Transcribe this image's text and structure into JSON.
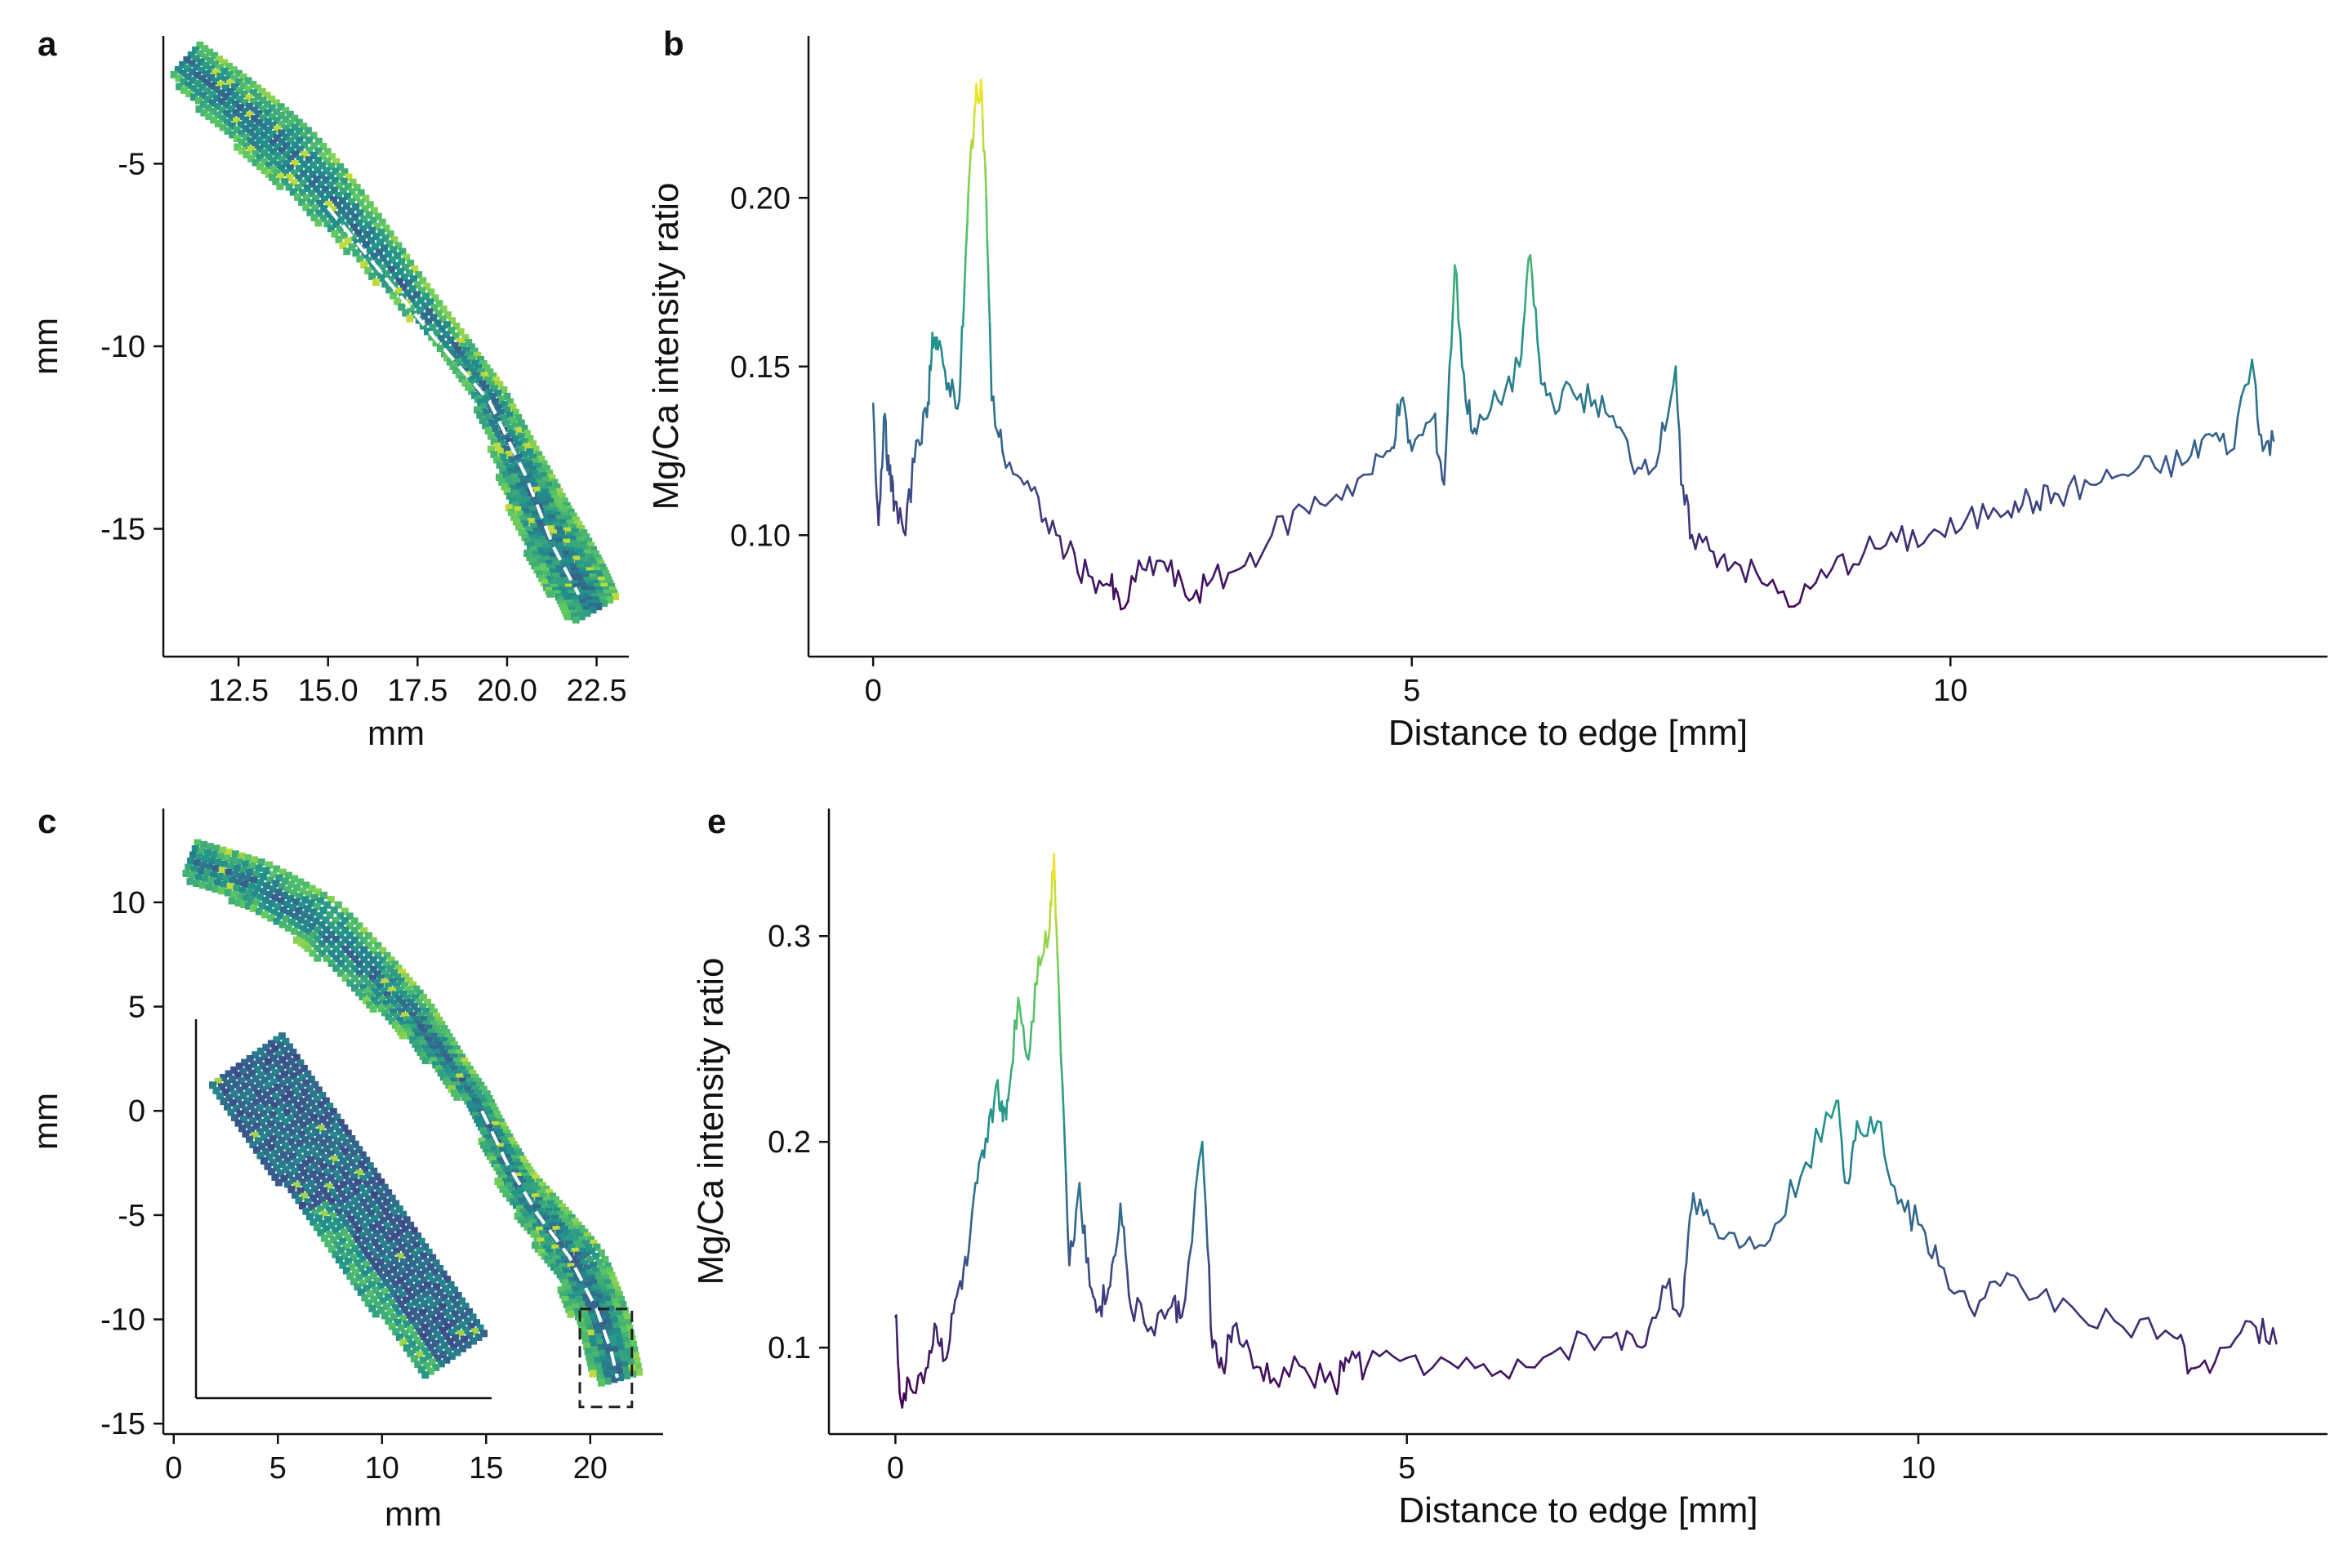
{
  "chart_data": [
    {
      "panel": "a",
      "type": "heatmap",
      "xlabel": "mm",
      "ylabel": "mm",
      "xlim": [
        10.4,
        23.4
      ],
      "ylim": [
        -18.5,
        -1.5
      ],
      "xticks": [
        12.5,
        15.0,
        17.5,
        20.0,
        22.5
      ],
      "xticklabels": [
        "12.5",
        "15.0",
        "17.5",
        "20.0",
        "22.5"
      ],
      "yticks": [
        -5,
        -10,
        -15
      ],
      "yticklabels": [
        "-5",
        "-10",
        "-15"
      ],
      "colormap": [
        "#440154",
        "#3b528b",
        "#21918c",
        "#5ec962",
        "#fde725"
      ],
      "band_centerline": [
        [
          11.0,
          -2.2
        ],
        [
          12.5,
          -3.5
        ],
        [
          14.0,
          -4.8
        ],
        [
          15.5,
          -6.4
        ],
        [
          17.0,
          -8.2
        ],
        [
          18.5,
          -10.0
        ],
        [
          19.5,
          -11.4
        ],
        [
          20.3,
          -13.2
        ],
        [
          21.0,
          -14.8
        ],
        [
          21.8,
          -16.2
        ],
        [
          22.4,
          -17.2
        ]
      ],
      "transect": [
        [
          15.0,
          -6.2
        ],
        [
          16.5,
          -8.0
        ],
        [
          18.0,
          -9.8
        ],
        [
          19.5,
          -11.5
        ],
        [
          20.5,
          -13.5
        ],
        [
          21.3,
          -15.5
        ],
        [
          22.0,
          -16.8
        ]
      ]
    },
    {
      "panel": "b",
      "type": "line",
      "xlabel": "Distance to edge [mm]",
      "ylabel": "Mg/Ca intensity ratio",
      "xlim": [
        -0.6,
        13.5
      ],
      "ylim": [
        0.064,
        0.248
      ],
      "xticks": [
        0,
        5,
        10
      ],
      "xticklabels": [
        "0",
        "5",
        "10"
      ],
      "yticks": [
        0.1,
        0.15,
        0.2
      ],
      "yticklabels": [
        "0.10",
        "0.15",
        "0.20"
      ],
      "colormap": [
        "#440154",
        "#3b528b",
        "#21918c",
        "#5ec962",
        "#fde725"
      ],
      "x": [
        0,
        0.05,
        0.1,
        0.15,
        0.2,
        0.3,
        0.4,
        0.5,
        0.55,
        0.6,
        0.7,
        0.8,
        0.85,
        0.9,
        0.95,
        1.0,
        1.05,
        1.1,
        1.2,
        1.4,
        1.6,
        1.8,
        2.0,
        2.2,
        2.3,
        2.5,
        2.7,
        2.9,
        3.1,
        3.4,
        3.7,
        4.0,
        4.3,
        4.6,
        4.8,
        4.9,
        5.0,
        5.2,
        5.3,
        5.4,
        5.5,
        5.6,
        5.8,
        6.0,
        6.1,
        6.2,
        6.3,
        6.5,
        6.7,
        6.9,
        7.1,
        7.3,
        7.45,
        7.5,
        7.6,
        7.8,
        8.0,
        8.3,
        8.6,
        8.9,
        9.2,
        9.5,
        9.8,
        10.1,
        10.4,
        10.6,
        10.8,
        11.0,
        11.3,
        11.6,
        11.9,
        12.2,
        12.4,
        12.6,
        12.8,
        12.9,
        13.0
      ],
      "y": [
        0.139,
        0.103,
        0.135,
        0.118,
        0.11,
        0.1,
        0.128,
        0.135,
        0.16,
        0.155,
        0.145,
        0.14,
        0.175,
        0.21,
        0.228,
        0.235,
        0.2,
        0.14,
        0.125,
        0.115,
        0.105,
        0.095,
        0.088,
        0.085,
        0.078,
        0.09,
        0.092,
        0.082,
        0.085,
        0.09,
        0.1,
        0.108,
        0.112,
        0.118,
        0.125,
        0.14,
        0.125,
        0.135,
        0.115,
        0.18,
        0.14,
        0.13,
        0.14,
        0.15,
        0.183,
        0.145,
        0.14,
        0.142,
        0.14,
        0.132,
        0.12,
        0.125,
        0.15,
        0.115,
        0.1,
        0.095,
        0.092,
        0.085,
        0.08,
        0.09,
        0.095,
        0.098,
        0.1,
        0.102,
        0.108,
        0.11,
        0.11,
        0.112,
        0.115,
        0.118,
        0.12,
        0.122,
        0.13,
        0.125,
        0.152,
        0.125,
        0.128
      ]
    },
    {
      "panel": "c",
      "type": "heatmap",
      "xlabel": "mm",
      "ylabel": "mm",
      "xlim": [
        -0.5,
        23.5
      ],
      "ylim": [
        -15.5,
        14.5
      ],
      "xticks": [
        0,
        5,
        10,
        15,
        20
      ],
      "xticklabels": [
        "0",
        "5",
        "10",
        "15",
        "20"
      ],
      "yticks": [
        10,
        5,
        0,
        -5,
        -10,
        -15
      ],
      "yticklabels": [
        "10",
        "5",
        "0",
        "-5",
        "-10",
        "-15"
      ],
      "colormap": [
        "#440154",
        "#3b528b",
        "#21918c",
        "#5ec962",
        "#fde725"
      ],
      "band_centerline": [
        [
          0.8,
          12.0
        ],
        [
          4.0,
          10.8
        ],
        [
          7.0,
          9.0
        ],
        [
          9.5,
          6.5
        ],
        [
          11.5,
          4.5
        ],
        [
          13.0,
          2.5
        ],
        [
          14.5,
          0.5
        ],
        [
          15.5,
          -1.5
        ],
        [
          16.5,
          -3.5
        ],
        [
          18.0,
          -5.5
        ],
        [
          19.5,
          -7.5
        ],
        [
          20.5,
          -10.0
        ],
        [
          21.3,
          -12.8
        ]
      ],
      "transect": [
        [
          14.8,
          0.0
        ],
        [
          16.0,
          -2.5
        ],
        [
          17.5,
          -5.0
        ],
        [
          19.0,
          -7.0
        ],
        [
          20.3,
          -9.5
        ],
        [
          21.0,
          -11.5
        ],
        [
          21.3,
          -12.8
        ]
      ],
      "zoom_box": {
        "x": [
          19.5,
          22.0
        ],
        "y": [
          -14.2,
          -9.5
        ]
      }
    },
    {
      "panel": "e",
      "type": "line",
      "xlabel": "Distance to edge [mm]",
      "ylabel": "Mg/Ca intensity ratio",
      "xlim": [
        -0.65,
        14.0
      ],
      "ylim": [
        0.058,
        0.362
      ],
      "xticks": [
        0,
        5,
        10
      ],
      "xticklabels": [
        "0",
        "5",
        "10"
      ],
      "yticks": [
        0.1,
        0.2,
        0.3
      ],
      "yticklabels": [
        "0.1",
        "0.2",
        "0.3"
      ],
      "colormap": [
        "#440154",
        "#3b528b",
        "#21918c",
        "#5ec962",
        "#fde725"
      ],
      "x": [
        0,
        0.05,
        0.15,
        0.3,
        0.4,
        0.5,
        0.6,
        0.7,
        0.8,
        0.9,
        1.0,
        1.05,
        1.1,
        1.2,
        1.3,
        1.4,
        1.5,
        1.55,
        1.6,
        1.7,
        1.8,
        1.9,
        2.0,
        2.1,
        2.2,
        2.3,
        2.5,
        2.7,
        2.8,
        3.0,
        3.1,
        3.2,
        3.3,
        3.5,
        3.7,
        4.0,
        4.3,
        4.4,
        4.6,
        5.0,
        5.5,
        6.0,
        6.5,
        7.0,
        7.3,
        7.5,
        7.7,
        7.8,
        8.0,
        8.3,
        8.6,
        8.9,
        9.2,
        9.3,
        9.4,
        9.6,
        9.8,
        10.0,
        10.2,
        10.5,
        10.8,
        11.0,
        11.5,
        12.0,
        12.5,
        12.7,
        13.0,
        13.3,
        13.5
      ],
      "y": [
        0.115,
        0.075,
        0.08,
        0.09,
        0.11,
        0.095,
        0.125,
        0.14,
        0.18,
        0.2,
        0.23,
        0.21,
        0.22,
        0.27,
        0.24,
        0.29,
        0.3,
        0.34,
        0.27,
        0.14,
        0.18,
        0.13,
        0.12,
        0.13,
        0.17,
        0.12,
        0.11,
        0.12,
        0.115,
        0.2,
        0.1,
        0.09,
        0.11,
        0.09,
        0.085,
        0.09,
        0.08,
        0.095,
        0.09,
        0.095,
        0.09,
        0.085,
        0.1,
        0.105,
        0.1,
        0.13,
        0.12,
        0.175,
        0.16,
        0.15,
        0.16,
        0.19,
        0.22,
        0.18,
        0.21,
        0.21,
        0.17,
        0.16,
        0.14,
        0.12,
        0.13,
        0.13,
        0.12,
        0.11,
        0.105,
        0.09,
        0.1,
        0.11,
        0.102
      ]
    }
  ],
  "panels": {
    "a": {
      "label": "a"
    },
    "b": {
      "label": "b"
    },
    "c": {
      "label": "c"
    },
    "e": {
      "label": "e"
    }
  }
}
